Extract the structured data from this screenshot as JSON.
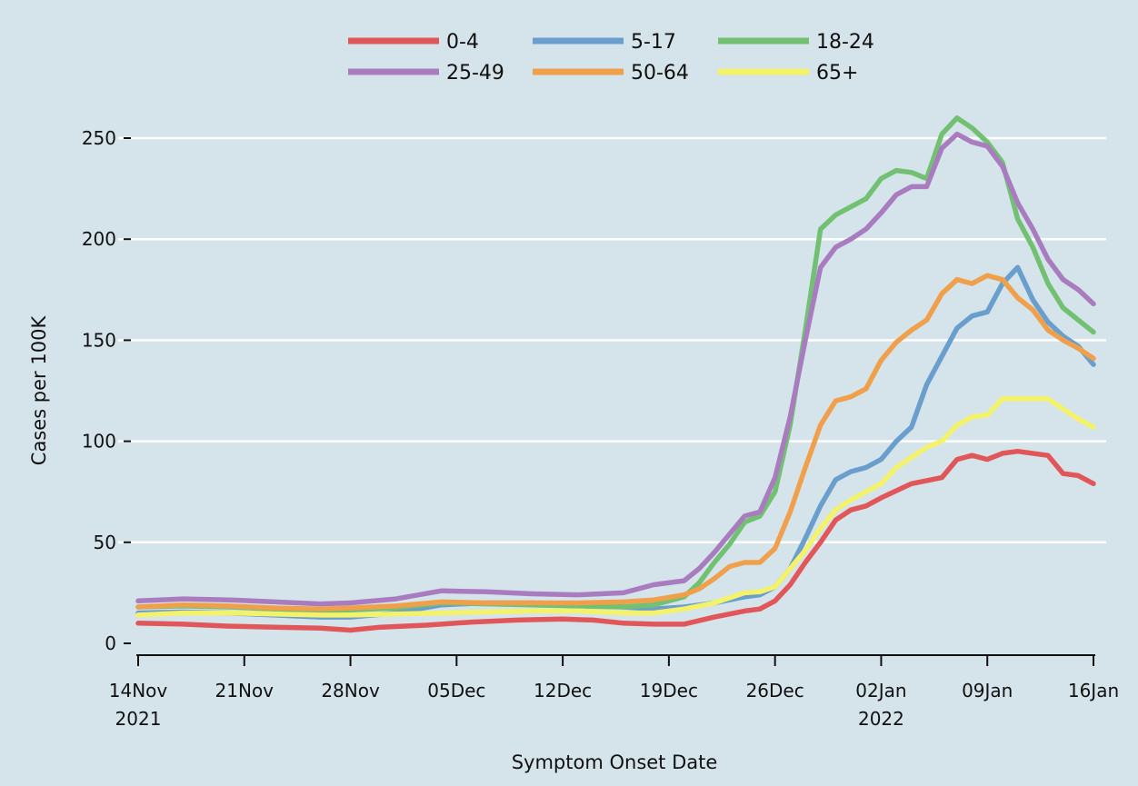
{
  "chart_data": {
    "type": "line",
    "xlabel": "Symptom Onset Date",
    "ylabel": "Cases per 100K",
    "xlim": [
      "2021-11-14",
      "2022-01-16"
    ],
    "ylim": [
      0,
      262
    ],
    "yticks": [
      0,
      50,
      100,
      150,
      200,
      250
    ],
    "xticks": [
      {
        "date": "2021-11-14",
        "label": "14Nov",
        "sublabel": "2021"
      },
      {
        "date": "2021-11-21",
        "label": "21Nov",
        "sublabel": ""
      },
      {
        "date": "2021-11-28",
        "label": "28Nov",
        "sublabel": ""
      },
      {
        "date": "2021-12-05",
        "label": "05Dec",
        "sublabel": ""
      },
      {
        "date": "2021-12-12",
        "label": "12Dec",
        "sublabel": ""
      },
      {
        "date": "2021-12-19",
        "label": "19Dec",
        "sublabel": ""
      },
      {
        "date": "2021-12-26",
        "label": "26Dec",
        "sublabel": ""
      },
      {
        "date": "2022-01-02",
        "label": "02Jan",
        "sublabel": "2022"
      },
      {
        "date": "2022-01-09",
        "label": "09Jan",
        "sublabel": ""
      },
      {
        "date": "2022-01-16",
        "label": "16Jan",
        "sublabel": ""
      }
    ],
    "grid": true,
    "legend_position": "top",
    "background_color": "#d5e4eb",
    "grid_color": "#ffffff",
    "series": [
      {
        "name": "0-4",
        "color": "#e15759",
        "points": [
          [
            "2021-11-14",
            10
          ],
          [
            "2021-11-17",
            9.5
          ],
          [
            "2021-11-20",
            8.5
          ],
          [
            "2021-11-23",
            8
          ],
          [
            "2021-11-26",
            7.5
          ],
          [
            "2021-11-28",
            6.5
          ],
          [
            "2021-11-30",
            8
          ],
          [
            "2021-12-03",
            9
          ],
          [
            "2021-12-06",
            10.5
          ],
          [
            "2021-12-09",
            11.5
          ],
          [
            "2021-12-12",
            12
          ],
          [
            "2021-12-14",
            11.5
          ],
          [
            "2021-12-16",
            10
          ],
          [
            "2021-12-18",
            9.5
          ],
          [
            "2021-12-20",
            9.5
          ],
          [
            "2021-12-22",
            13
          ],
          [
            "2021-12-24",
            16
          ],
          [
            "2021-12-25",
            17
          ],
          [
            "2021-12-26",
            21
          ],
          [
            "2021-12-27",
            29
          ],
          [
            "2021-12-28",
            40
          ],
          [
            "2021-12-29",
            50
          ],
          [
            "2021-12-30",
            61
          ],
          [
            "2021-12-31",
            66
          ],
          [
            "2022-01-01",
            68
          ],
          [
            "2022-01-02",
            72
          ],
          [
            "2022-01-04",
            79
          ],
          [
            "2022-01-06",
            82
          ],
          [
            "2022-01-07",
            91
          ],
          [
            "2022-01-08",
            93
          ],
          [
            "2022-01-09",
            91
          ],
          [
            "2022-01-10",
            94
          ],
          [
            "2022-01-11",
            95
          ],
          [
            "2022-01-13",
            93
          ],
          [
            "2022-01-14",
            84
          ],
          [
            "2022-01-15",
            83
          ],
          [
            "2022-01-16",
            79
          ]
        ]
      },
      {
        "name": "5-17",
        "color": "#6a9ecd",
        "points": [
          [
            "2021-11-14",
            15
          ],
          [
            "2021-11-17",
            15.5
          ],
          [
            "2021-11-20",
            15
          ],
          [
            "2021-11-23",
            14
          ],
          [
            "2021-11-26",
            13
          ],
          [
            "2021-11-28",
            13
          ],
          [
            "2021-12-01",
            15
          ],
          [
            "2021-12-04",
            19
          ],
          [
            "2021-12-07",
            20
          ],
          [
            "2021-12-10",
            20
          ],
          [
            "2021-12-13",
            19.5
          ],
          [
            "2021-12-16",
            18
          ],
          [
            "2021-12-18",
            17
          ],
          [
            "2021-12-20",
            18
          ],
          [
            "2021-12-22",
            20
          ],
          [
            "2021-12-24",
            23
          ],
          [
            "2021-12-25",
            24
          ],
          [
            "2021-12-26",
            28
          ],
          [
            "2021-12-27",
            37
          ],
          [
            "2021-12-28",
            52
          ],
          [
            "2021-12-29",
            68
          ],
          [
            "2021-12-30",
            81
          ],
          [
            "2021-12-31",
            85
          ],
          [
            "2022-01-01",
            87
          ],
          [
            "2022-01-02",
            91
          ],
          [
            "2022-01-03",
            100
          ],
          [
            "2022-01-04",
            107
          ],
          [
            "2022-01-05",
            128
          ],
          [
            "2022-01-06",
            142
          ],
          [
            "2022-01-07",
            156
          ],
          [
            "2022-01-08",
            162
          ],
          [
            "2022-01-09",
            164
          ],
          [
            "2022-01-10",
            178
          ],
          [
            "2022-01-11",
            186
          ],
          [
            "2022-01-12",
            170
          ],
          [
            "2022-01-13",
            159
          ],
          [
            "2022-01-14",
            152
          ],
          [
            "2022-01-15",
            147
          ],
          [
            "2022-01-16",
            138
          ]
        ]
      },
      {
        "name": "18-24",
        "color": "#72c172",
        "points": [
          [
            "2021-11-14",
            18
          ],
          [
            "2021-11-17",
            18.5
          ],
          [
            "2021-11-20",
            18
          ],
          [
            "2021-11-23",
            17
          ],
          [
            "2021-11-26",
            16
          ],
          [
            "2021-11-28",
            16.5
          ],
          [
            "2021-12-01",
            17.5
          ],
          [
            "2021-12-04",
            20
          ],
          [
            "2021-12-07",
            19.5
          ],
          [
            "2021-12-10",
            19
          ],
          [
            "2021-12-13",
            18.5
          ],
          [
            "2021-12-16",
            18
          ],
          [
            "2021-12-18",
            19
          ],
          [
            "2021-12-20",
            23
          ],
          [
            "2021-12-21",
            30
          ],
          [
            "2021-12-22",
            40
          ],
          [
            "2021-12-23",
            49
          ],
          [
            "2021-12-24",
            60
          ],
          [
            "2021-12-25",
            63
          ],
          [
            "2021-12-26",
            75
          ],
          [
            "2021-12-27",
            108
          ],
          [
            "2021-12-28",
            155
          ],
          [
            "2021-12-29",
            205
          ],
          [
            "2021-12-30",
            212
          ],
          [
            "2021-12-31",
            216
          ],
          [
            "2022-01-01",
            220
          ],
          [
            "2022-01-02",
            230
          ],
          [
            "2022-01-03",
            234
          ],
          [
            "2022-01-04",
            233
          ],
          [
            "2022-01-05",
            230
          ],
          [
            "2022-01-06",
            252
          ],
          [
            "2022-01-07",
            260
          ],
          [
            "2022-01-08",
            255
          ],
          [
            "2022-01-09",
            248
          ],
          [
            "2022-01-10",
            238
          ],
          [
            "2022-01-11",
            210
          ],
          [
            "2022-01-12",
            196
          ],
          [
            "2022-01-13",
            178
          ],
          [
            "2022-01-14",
            166
          ],
          [
            "2022-01-15",
            160
          ],
          [
            "2022-01-16",
            154
          ]
        ]
      },
      {
        "name": "25-49",
        "color": "#a97cc0",
        "points": [
          [
            "2021-11-14",
            21
          ],
          [
            "2021-11-17",
            22
          ],
          [
            "2021-11-20",
            21.5
          ],
          [
            "2021-11-23",
            20.5
          ],
          [
            "2021-11-26",
            19.5
          ],
          [
            "2021-11-28",
            20
          ],
          [
            "2021-12-01",
            22
          ],
          [
            "2021-12-04",
            26
          ],
          [
            "2021-12-07",
            25.5
          ],
          [
            "2021-12-10",
            24.5
          ],
          [
            "2021-12-13",
            24
          ],
          [
            "2021-12-16",
            25
          ],
          [
            "2021-12-18",
            29
          ],
          [
            "2021-12-20",
            31
          ],
          [
            "2021-12-21",
            37
          ],
          [
            "2021-12-22",
            45
          ],
          [
            "2021-12-23",
            54
          ],
          [
            "2021-12-24",
            63
          ],
          [
            "2021-12-25",
            65
          ],
          [
            "2021-12-26",
            82
          ],
          [
            "2021-12-27",
            112
          ],
          [
            "2021-12-28",
            150
          ],
          [
            "2021-12-29",
            186
          ],
          [
            "2021-12-30",
            196
          ],
          [
            "2021-12-31",
            200
          ],
          [
            "2022-01-01",
            205
          ],
          [
            "2022-01-02",
            213
          ],
          [
            "2022-01-03",
            222
          ],
          [
            "2022-01-04",
            226
          ],
          [
            "2022-01-05",
            226
          ],
          [
            "2022-01-06",
            245
          ],
          [
            "2022-01-07",
            252
          ],
          [
            "2022-01-08",
            248
          ],
          [
            "2022-01-09",
            246
          ],
          [
            "2022-01-10",
            236
          ],
          [
            "2022-01-11",
            218
          ],
          [
            "2022-01-12",
            205
          ],
          [
            "2022-01-13",
            190
          ],
          [
            "2022-01-14",
            180
          ],
          [
            "2022-01-15",
            175
          ],
          [
            "2022-01-16",
            168
          ]
        ]
      },
      {
        "name": "50-64",
        "color": "#f0a04b",
        "points": [
          [
            "2021-11-14",
            18
          ],
          [
            "2021-11-17",
            19
          ],
          [
            "2021-11-20",
            18.5
          ],
          [
            "2021-11-23",
            17.5
          ],
          [
            "2021-11-26",
            17
          ],
          [
            "2021-11-28",
            17.5
          ],
          [
            "2021-12-01",
            18.5
          ],
          [
            "2021-12-04",
            20.5
          ],
          [
            "2021-12-07",
            20
          ],
          [
            "2021-12-10",
            20
          ],
          [
            "2021-12-13",
            20
          ],
          [
            "2021-12-16",
            20.5
          ],
          [
            "2021-12-18",
            21.5
          ],
          [
            "2021-12-20",
            24
          ],
          [
            "2021-12-21",
            27
          ],
          [
            "2021-12-22",
            32
          ],
          [
            "2021-12-23",
            38
          ],
          [
            "2021-12-24",
            40
          ],
          [
            "2021-12-25",
            40
          ],
          [
            "2021-12-26",
            47
          ],
          [
            "2021-12-27",
            65
          ],
          [
            "2021-12-28",
            87
          ],
          [
            "2021-12-29",
            108
          ],
          [
            "2021-12-30",
            120
          ],
          [
            "2021-12-31",
            122
          ],
          [
            "2022-01-01",
            126
          ],
          [
            "2022-01-02",
            140
          ],
          [
            "2022-01-03",
            149
          ],
          [
            "2022-01-04",
            155
          ],
          [
            "2022-01-05",
            160
          ],
          [
            "2022-01-06",
            173
          ],
          [
            "2022-01-07",
            180
          ],
          [
            "2022-01-08",
            178
          ],
          [
            "2022-01-09",
            182
          ],
          [
            "2022-01-10",
            180
          ],
          [
            "2022-01-11",
            171
          ],
          [
            "2022-01-12",
            165
          ],
          [
            "2022-01-13",
            155
          ],
          [
            "2022-01-14",
            150
          ],
          [
            "2022-01-15",
            146
          ],
          [
            "2022-01-16",
            141
          ]
        ]
      },
      {
        "name": "65+",
        "color": "#f3f26a",
        "points": [
          [
            "2021-11-14",
            14
          ],
          [
            "2021-11-17",
            15
          ],
          [
            "2021-11-20",
            15
          ],
          [
            "2021-11-23",
            14.5
          ],
          [
            "2021-11-26",
            14
          ],
          [
            "2021-11-28",
            14
          ],
          [
            "2021-12-01",
            14.5
          ],
          [
            "2021-12-04",
            15
          ],
          [
            "2021-12-07",
            15.5
          ],
          [
            "2021-12-10",
            16
          ],
          [
            "2021-12-13",
            16
          ],
          [
            "2021-12-16",
            15
          ],
          [
            "2021-12-18",
            15
          ],
          [
            "2021-12-20",
            17
          ],
          [
            "2021-12-22",
            20
          ],
          [
            "2021-12-24",
            25
          ],
          [
            "2021-12-25",
            25.5
          ],
          [
            "2021-12-26",
            28
          ],
          [
            "2021-12-27",
            37
          ],
          [
            "2021-12-28",
            46
          ],
          [
            "2021-12-29",
            57
          ],
          [
            "2021-12-30",
            66
          ],
          [
            "2021-12-31",
            71
          ],
          [
            "2022-01-01",
            75
          ],
          [
            "2022-01-02",
            79
          ],
          [
            "2022-01-03",
            87
          ],
          [
            "2022-01-04",
            92
          ],
          [
            "2022-01-05",
            97
          ],
          [
            "2022-01-06",
            100
          ],
          [
            "2022-01-07",
            108
          ],
          [
            "2022-01-08",
            112
          ],
          [
            "2022-01-09",
            113
          ],
          [
            "2022-01-10",
            121
          ],
          [
            "2022-01-11",
            121
          ],
          [
            "2022-01-13",
            121
          ],
          [
            "2022-01-14",
            116
          ],
          [
            "2022-01-15",
            111
          ],
          [
            "2022-01-16",
            107
          ]
        ]
      }
    ]
  }
}
